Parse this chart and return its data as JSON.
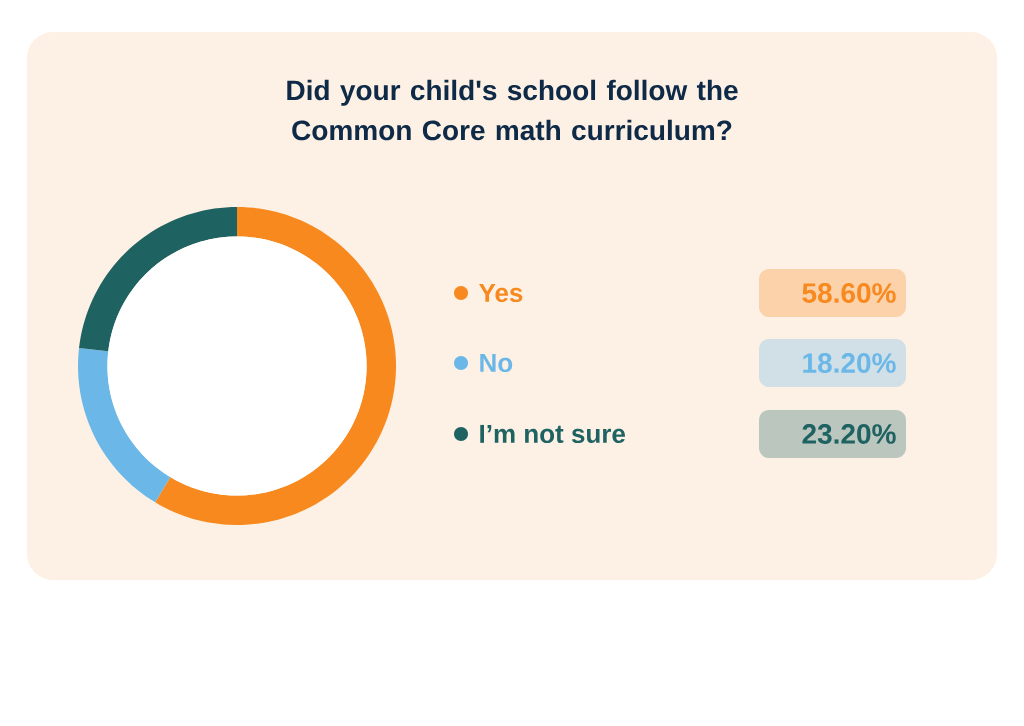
{
  "chart_data": {
    "type": "donut",
    "title": "Did your child's school follow the Common Core math curriculum?",
    "categories": [
      "Yes",
      "No",
      "I’m not sure"
    ],
    "values": [
      58.6,
      18.2,
      23.2
    ],
    "value_labels": [
      "58.60%",
      "18.20%",
      "23.20%"
    ],
    "colors": [
      "#f7891f",
      "#6bb8e8",
      "#1f6262"
    ],
    "legend": "right"
  }
}
